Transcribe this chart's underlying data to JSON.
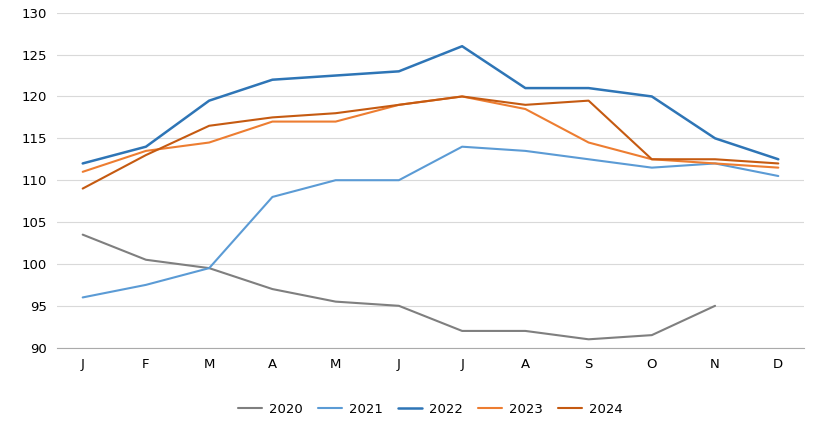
{
  "months": [
    "J",
    "F",
    "M",
    "A",
    "M",
    "J",
    "J",
    "A",
    "S",
    "O",
    "N",
    "D"
  ],
  "series": {
    "2020": [
      103.5,
      100.5,
      99.5,
      97.0,
      95.5,
      95.0,
      92.0,
      92.0,
      91.0,
      91.5,
      95.0,
      null
    ],
    "2021": [
      96.0,
      97.5,
      99.5,
      108.0,
      110.0,
      110.0,
      114.0,
      113.5,
      112.5,
      111.5,
      112.0,
      110.5
    ],
    "2022": [
      112.0,
      114.0,
      119.5,
      122.0,
      122.5,
      123.0,
      126.0,
      121.0,
      121.0,
      120.0,
      115.0,
      112.5
    ],
    "2023": [
      111.0,
      113.5,
      114.5,
      117.0,
      117.0,
      119.0,
      120.0,
      118.5,
      114.5,
      112.5,
      112.0,
      111.5
    ],
    "2024": [
      109.0,
      113.0,
      116.5,
      117.5,
      118.0,
      119.0,
      120.0,
      119.0,
      119.5,
      112.5,
      112.5,
      112.0
    ]
  },
  "colors": {
    "2020": "#7F7F7F",
    "2021": "#5B9BD5",
    "2022": "#2E75B6",
    "2023": "#ED7D31",
    "2024": "#C55A11"
  },
  "line_widths": {
    "2020": 1.5,
    "2021": 1.5,
    "2022": 1.8,
    "2023": 1.5,
    "2024": 1.5
  },
  "ylim": [
    90,
    130
  ],
  "yticks": [
    90,
    95,
    100,
    105,
    110,
    115,
    120,
    125,
    130
  ],
  "background_color": "#ffffff",
  "grid_color": "#d9d9d9"
}
